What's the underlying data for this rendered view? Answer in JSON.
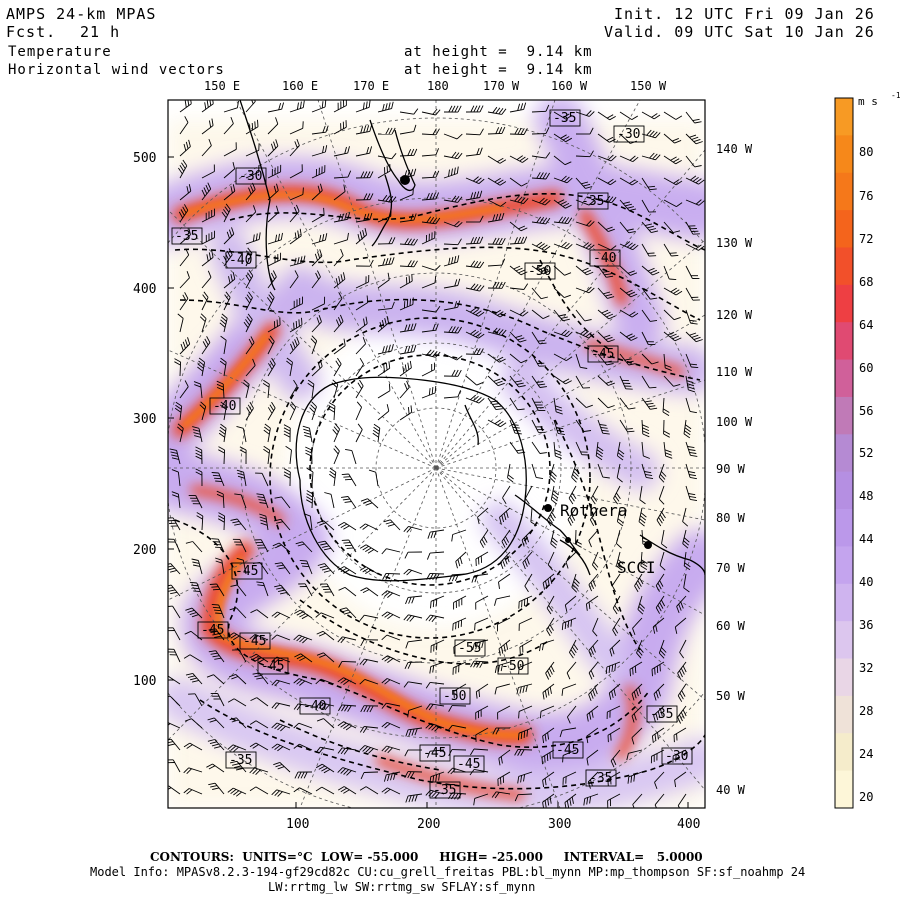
{
  "header": {
    "model": "AMPS 24-km MPAS",
    "fcst_label": "Fcst.",
    "fcst_value": "21 h",
    "init": "Init. 12 UTC Fri 09 Jan 26",
    "valid": "Valid. 09 UTC Sat 10 Jan 26",
    "field1": "Temperature",
    "field2": "Horizontal wind vectors",
    "height1": "at height =  9.14 km",
    "height2": "at height =  9.14 km"
  },
  "map": {
    "top_lon_labels": [
      "150 E",
      "160 E",
      "170 E",
      "180",
      "170 W",
      "160 W",
      "150 W"
    ],
    "right_lon_labels": [
      "140 W",
      "130 W",
      "120 W",
      "110 W",
      "100 W",
      "90 W",
      "80 W",
      "70 W",
      "60 W",
      "50 W",
      "40 W"
    ],
    "y_axis_ticks": [
      "500",
      "400",
      "300",
      "200",
      "100"
    ],
    "x_axis_ticks": [
      "100",
      "200",
      "300",
      "400"
    ],
    "place_labels": [
      "Rothera",
      "SCCI"
    ],
    "temperature_contour_labels": [
      "-35",
      "-30",
      "-30",
      "-35",
      "-35",
      "-40",
      "-40",
      "-50",
      "-45",
      "-40",
      "-45",
      "-45",
      "-45",
      "-45",
      "-40",
      "-55",
      "-50",
      "-50",
      "-45",
      "-45",
      "-45",
      "-35",
      "-35",
      "-30",
      "-35",
      "-35"
    ]
  },
  "colorbar": {
    "units": "m s",
    "units_exp": "-1",
    "ticks": [
      "80",
      "76",
      "72",
      "68",
      "64",
      "60",
      "56",
      "52",
      "48",
      "44",
      "40",
      "36",
      "32",
      "28",
      "24",
      "20"
    ],
    "colors": [
      "#fdf6d8",
      "#f5eccb",
      "#efe2d8",
      "#e9d6e6",
      "#dcc6ee",
      "#cfb4ef",
      "#c4a4ee",
      "#bb98ea",
      "#b58fe2",
      "#b58ad3",
      "#c07ab7",
      "#d0609a",
      "#e04a72",
      "#ee3f43",
      "#f2502a",
      "#f4641c",
      "#f5781a",
      "#f6881a",
      "#f79a24"
    ]
  },
  "footer": {
    "contours": "CONTOURS:  UNITS=°C  LOW= -55.000     HIGH= -25.000     INTERVAL=   5.0000",
    "model_info_1": "Model Info: MPASv8.2.3-194-gf29cd82c CU:cu_grell_freitas PBL:bl_mynn MP:mp_thompson SF:sf_noahmp 24",
    "model_info_2": "LW:rrtmg_lw SW:rrtmg_sw SFLAY:sf_mynn"
  }
}
